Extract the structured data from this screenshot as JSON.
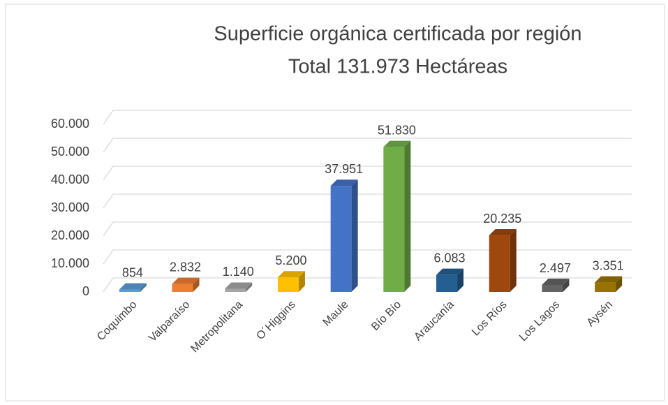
{
  "chart_data": {
    "type": "bar3d",
    "title": "Superficie orgánica certificada por región",
    "subtitle": "Total 131.973 Hectáreas",
    "categories": [
      "Coquimbo",
      "Valparaíso",
      "Metropolitana",
      "O´Higgins",
      "Maule",
      "Bío Bío",
      "Araucanía",
      "Los Ríos",
      "Los Lagos",
      "Aysén"
    ],
    "values": [
      854,
      2832,
      1140,
      5200,
      37951,
      51830,
      6083,
      20235,
      2497,
      3351
    ],
    "value_labels": [
      "854",
      "2.832",
      "1.140",
      "5.200",
      "37.951",
      "51.830",
      "6.083",
      "20.235",
      "2.497",
      "3.351"
    ],
    "colors": [
      "#5b9bd5",
      "#ed7d31",
      "#a5a5a5",
      "#ffc000",
      "#4472c4",
      "#70ad47",
      "#255e91",
      "#9e480e",
      "#636363",
      "#997300"
    ],
    "ylim": [
      0,
      60000
    ],
    "yticks": [
      0,
      {
        "value": 10000,
        "label": "10.000"
      },
      {
        "value": 20000,
        "label": "20.000"
      },
      {
        "value": 30000,
        "label": "30.000"
      },
      {
        "value": 40000,
        "label": "40.000"
      },
      {
        "value": 50000,
        "label": "50.000"
      },
      {
        "value": 60000,
        "label": "60.000"
      }
    ],
    "grid": true
  }
}
